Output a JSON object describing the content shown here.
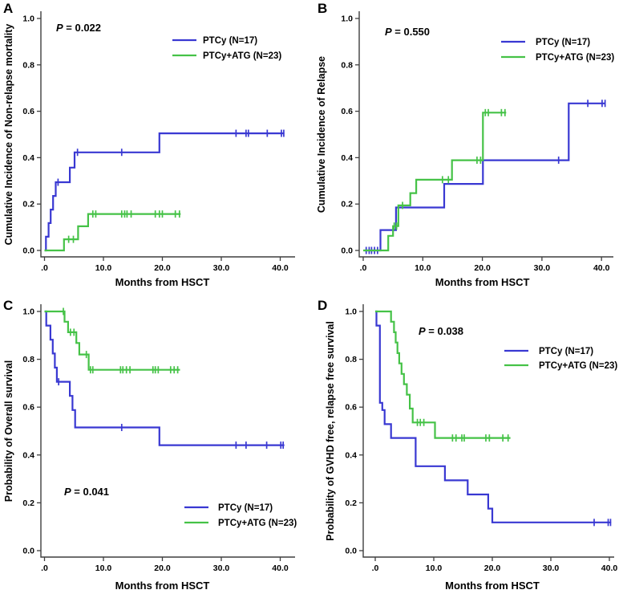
{
  "figure": {
    "background": "#ffffff",
    "text_color": "#000000",
    "axis_color": "#3f3f3f"
  },
  "chart_data": [
    {
      "id": "A",
      "panel_label": "A",
      "type": "line",
      "subtype": "kaplan-meier-step",
      "xlabel": "Months from HSCT",
      "ylabel": "Cumulative Incidence of Non-relapse mortality",
      "pvalue": "P = 0.022",
      "xlim": [
        0,
        42
      ],
      "ylim": [
        0,
        1
      ],
      "xticks": [
        0,
        10,
        20,
        30,
        40
      ],
      "xtick_labels": [
        ".0",
        "10.0",
        "20.0",
        "30.0",
        "40.0"
      ],
      "yticks": [
        0,
        0.2,
        0.4,
        0.6,
        0.8,
        1
      ],
      "ytick_labels": [
        "0.0",
        "0.2",
        "0.4",
        "0.6",
        "0.8",
        "1.0"
      ],
      "legend_position": "upper-right",
      "grid": false,
      "series": [
        {
          "name": "PTCy (N=17)",
          "color": "#3938d2",
          "steps": [
            [
              0,
              0
            ],
            [
              0.25,
              0.059
            ],
            [
              0.7,
              0.118
            ],
            [
              1.05,
              0.176
            ],
            [
              1.45,
              0.235
            ],
            [
              1.9,
              0.294
            ],
            [
              4.3,
              0.357
            ],
            [
              5.1,
              0.423
            ],
            [
              19.5,
              0.505
            ],
            [
              40.7,
              0.505
            ]
          ],
          "censors": [
            [
              2.3,
              0.294
            ],
            [
              5.6,
              0.423
            ],
            [
              13.1,
              0.423
            ],
            [
              32.5,
              0.505
            ],
            [
              34.2,
              0.505
            ],
            [
              34.6,
              0.505
            ],
            [
              37.8,
              0.505
            ],
            [
              40.2,
              0.505
            ],
            [
              40.6,
              0.505
            ]
          ]
        },
        {
          "name": "PTCy+ATG (N=23)",
          "color": "#45c247",
          "steps": [
            [
              0,
              0
            ],
            [
              3.3,
              0.048
            ],
            [
              5.7,
              0.104
            ],
            [
              7.4,
              0.157
            ],
            [
              23.1,
              0.157
            ]
          ],
          "censors": [
            [
              4.1,
              0.048
            ],
            [
              4.9,
              0.048
            ],
            [
              8.2,
              0.157
            ],
            [
              8.7,
              0.157
            ],
            [
              13.1,
              0.157
            ],
            [
              13.6,
              0.157
            ],
            [
              14.0,
              0.157
            ],
            [
              14.7,
              0.157
            ],
            [
              18.8,
              0.157
            ],
            [
              19.5,
              0.157
            ],
            [
              20.0,
              0.157
            ],
            [
              22.2,
              0.157
            ],
            [
              22.9,
              0.157
            ]
          ]
        }
      ]
    },
    {
      "id": "B",
      "panel_label": "B",
      "type": "line",
      "subtype": "kaplan-meier-step",
      "xlabel": "Months from HSCT",
      "ylabel": "Cumulative Incidence of Relapse",
      "pvalue": "P = 0.550",
      "xlim": [
        0,
        42
      ],
      "ylim": [
        0,
        1
      ],
      "xticks": [
        0,
        10,
        20,
        30,
        40
      ],
      "xtick_labels": [
        ".0",
        "10.0",
        "20.0",
        "30.0",
        "40.0"
      ],
      "yticks": [
        0,
        0.2,
        0.4,
        0.6,
        0.8,
        1
      ],
      "ytick_labels": [
        "0.0",
        "0.2",
        "0.4",
        "0.6",
        "0.8",
        "1.0"
      ],
      "legend_position": "upper-right",
      "grid": false,
      "series": [
        {
          "name": "PTCy (N=17)",
          "color": "#3938d2",
          "steps": [
            [
              0.2,
              0
            ],
            [
              2.9,
              0.088
            ],
            [
              5.5,
              0.185
            ],
            [
              13.6,
              0.287
            ],
            [
              20.1,
              0.389
            ],
            [
              34.5,
              0.634
            ],
            [
              40.7,
              0.634
            ]
          ],
          "censors": [
            [
              0.5,
              0
            ],
            [
              1.0,
              0
            ],
            [
              1.4,
              0
            ],
            [
              1.9,
              0
            ],
            [
              2.4,
              0
            ],
            [
              32.8,
              0.389
            ],
            [
              37.7,
              0.634
            ],
            [
              40.1,
              0.634
            ],
            [
              40.6,
              0.634
            ]
          ]
        },
        {
          "name": "PTCy+ATG (N=23)",
          "color": "#45c247",
          "steps": [
            [
              0,
              0
            ],
            [
              4.2,
              0.063
            ],
            [
              5.0,
              0.105
            ],
            [
              5.9,
              0.194
            ],
            [
              7.9,
              0.247
            ],
            [
              8.9,
              0.305
            ],
            [
              14.9,
              0.389
            ],
            [
              20.1,
              0.594
            ],
            [
              24.0,
              0.594
            ]
          ],
          "censors": [
            [
              5.2,
              0.105
            ],
            [
              5.6,
              0.105
            ],
            [
              6.6,
              0.194
            ],
            [
              13.3,
              0.305
            ],
            [
              14.3,
              0.305
            ],
            [
              19.1,
              0.389
            ],
            [
              19.7,
              0.389
            ],
            [
              20.5,
              0.594
            ],
            [
              21.0,
              0.594
            ],
            [
              23.2,
              0.594
            ],
            [
              23.8,
              0.594
            ]
          ]
        }
      ]
    },
    {
      "id": "C",
      "panel_label": "C",
      "type": "line",
      "subtype": "kaplan-meier-step",
      "xlabel": "Months from HSCT",
      "ylabel": "Probability of Overall survival",
      "pvalue": "P = 0.041",
      "xlim": [
        0,
        42
      ],
      "ylim": [
        0,
        1
      ],
      "xticks": [
        0,
        10,
        20,
        30,
        40
      ],
      "xtick_labels": [
        ".0",
        "10.0",
        "20.0",
        "30.0",
        "40.0"
      ],
      "yticks": [
        0,
        0.2,
        0.4,
        0.6,
        0.8,
        1
      ],
      "ytick_labels": [
        "0.0",
        "0.2",
        "0.4",
        "0.6",
        "0.8",
        "1.0"
      ],
      "legend_position": "lower-right",
      "grid": false,
      "series": [
        {
          "name": "PTCy (N=17)",
          "color": "#3938d2",
          "steps": [
            [
              0,
              1.0
            ],
            [
              0.3,
              0.941
            ],
            [
              1.0,
              0.882
            ],
            [
              1.4,
              0.824
            ],
            [
              1.75,
              0.765
            ],
            [
              2.1,
              0.706
            ],
            [
              4.3,
              0.647
            ],
            [
              4.75,
              0.588
            ],
            [
              5.2,
              0.515
            ],
            [
              19.5,
              0.441
            ],
            [
              40.7,
              0.441
            ]
          ],
          "censors": [
            [
              2.4,
              0.706
            ],
            [
              13.1,
              0.515
            ],
            [
              32.5,
              0.441
            ],
            [
              34.2,
              0.441
            ],
            [
              37.7,
              0.441
            ],
            [
              40.1,
              0.441
            ],
            [
              40.5,
              0.441
            ]
          ]
        },
        {
          "name": "PTCy+ATG (N=23)",
          "color": "#45c247",
          "steps": [
            [
              0,
              1.0
            ],
            [
              3.4,
              0.957
            ],
            [
              4.0,
              0.913
            ],
            [
              5.4,
              0.868
            ],
            [
              5.9,
              0.82
            ],
            [
              7.5,
              0.756
            ],
            [
              23.0,
              0.756
            ]
          ],
          "censors": [
            [
              3.2,
              1.0
            ],
            [
              4.4,
              0.913
            ],
            [
              5.0,
              0.913
            ],
            [
              7.1,
              0.82
            ],
            [
              7.8,
              0.756
            ],
            [
              8.2,
              0.756
            ],
            [
              12.9,
              0.756
            ],
            [
              13.3,
              0.756
            ],
            [
              13.9,
              0.756
            ],
            [
              14.5,
              0.756
            ],
            [
              18.4,
              0.756
            ],
            [
              18.8,
              0.756
            ],
            [
              19.3,
              0.756
            ],
            [
              21.4,
              0.756
            ],
            [
              22.0,
              0.756
            ],
            [
              22.6,
              0.756
            ]
          ]
        }
      ]
    },
    {
      "id": "D",
      "panel_label": "D",
      "type": "line",
      "subtype": "kaplan-meier-step",
      "xlabel": "Months from HSCT",
      "ylabel": "Probability of GVHD free, relapse free survival",
      "pvalue": "P = 0.038",
      "xlim": [
        0,
        42
      ],
      "ylim": [
        0,
        1
      ],
      "xticks": [
        0,
        10,
        20,
        30,
        40
      ],
      "xtick_labels": [
        ".0",
        "10.0",
        "20.0",
        "30.0",
        "40.0"
      ],
      "yticks": [
        0,
        0.2,
        0.4,
        0.6,
        0.8,
        1
      ],
      "ytick_labels": [
        "0.0",
        "0.2",
        "0.4",
        "0.6",
        "0.8",
        "1.0"
      ],
      "legend_position": "right-upper",
      "grid": false,
      "series": [
        {
          "name": "PTCy (N=17)",
          "color": "#3938d2",
          "steps": [
            [
              0,
              1.0
            ],
            [
              0.2,
              0.941
            ],
            [
              0.8,
              0.618
            ],
            [
              1.2,
              0.588
            ],
            [
              1.6,
              0.529
            ],
            [
              2.7,
              0.471
            ],
            [
              6.9,
              0.353
            ],
            [
              11.9,
              0.294
            ],
            [
              15.8,
              0.235
            ],
            [
              19.3,
              0.176
            ],
            [
              20.0,
              0.118
            ],
            [
              40.3,
              0.118
            ]
          ],
          "censors": [
            [
              37.4,
              0.118
            ],
            [
              39.8,
              0.118
            ],
            [
              40.2,
              0.118
            ]
          ]
        },
        {
          "name": "PTCy+ATG (N=23)",
          "color": "#45c247",
          "steps": [
            [
              0,
              1.0
            ],
            [
              2.7,
              0.957
            ],
            [
              3.2,
              0.913
            ],
            [
              3.5,
              0.87
            ],
            [
              3.8,
              0.826
            ],
            [
              4.1,
              0.783
            ],
            [
              4.5,
              0.739
            ],
            [
              4.9,
              0.696
            ],
            [
              5.4,
              0.652
            ],
            [
              5.9,
              0.594
            ],
            [
              6.4,
              0.536
            ],
            [
              10.2,
              0.471
            ],
            [
              23.1,
              0.471
            ]
          ],
          "censors": [
            [
              7.2,
              0.536
            ],
            [
              7.7,
              0.536
            ],
            [
              8.3,
              0.536
            ],
            [
              13.2,
              0.471
            ],
            [
              13.8,
              0.471
            ],
            [
              14.8,
              0.471
            ],
            [
              15.2,
              0.471
            ],
            [
              18.9,
              0.471
            ],
            [
              19.5,
              0.471
            ],
            [
              21.8,
              0.471
            ],
            [
              22.7,
              0.471
            ]
          ]
        }
      ]
    }
  ]
}
